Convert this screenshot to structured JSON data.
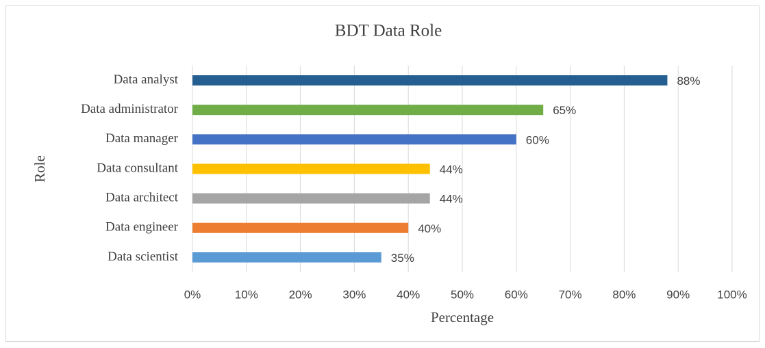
{
  "chart_data": {
    "type": "hbar",
    "title": "BDT Data Role",
    "x_label": "Percentage",
    "y_label": "Role",
    "categories": [
      "Data analyst",
      "Data administrator",
      "Data manager",
      "Data consultant",
      "Data architect",
      "Data engineer",
      "Data scientist"
    ],
    "values": [
      88,
      65,
      60,
      44,
      44,
      40,
      35
    ],
    "value_labels": [
      "88%",
      "65%",
      "60%",
      "44%",
      "44%",
      "40%",
      "35%"
    ],
    "colors": [
      "#255e91",
      "#70ad47",
      "#4472c4",
      "#ffc000",
      "#a5a5a5",
      "#ed7d31",
      "#5b9bd5"
    ],
    "xlim": [
      0,
      100
    ],
    "xticks": [
      {
        "value": 0,
        "label": "0%"
      },
      {
        "value": 10,
        "label": "10%"
      },
      {
        "value": 20,
        "label": "20%"
      },
      {
        "value": 30,
        "label": "30%"
      },
      {
        "value": 40,
        "label": "40%"
      },
      {
        "value": 50,
        "label": "50%"
      },
      {
        "value": 60,
        "label": "60%"
      },
      {
        "value": 70,
        "label": "70%"
      },
      {
        "value": 80,
        "label": "80%"
      },
      {
        "value": 90,
        "label": "90%"
      },
      {
        "value": 100,
        "label": "100%"
      }
    ],
    "grid": true
  }
}
